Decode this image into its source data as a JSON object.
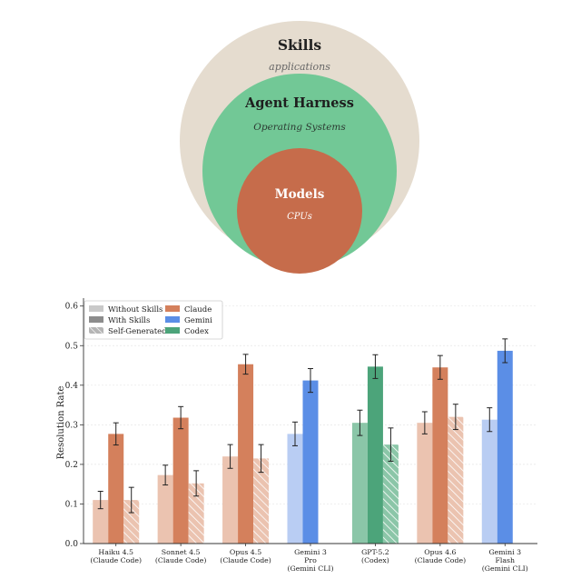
{
  "nested_diagram": {
    "outer": {
      "title": "Skills",
      "subtitle": "applications",
      "color": "#e5dccf"
    },
    "middle": {
      "title": "Agent Harness",
      "subtitle": "Operating Systems",
      "color": "#72c896"
    },
    "inner": {
      "title": "Models",
      "subtitle": "CPUs",
      "color": "#c66c4b"
    }
  },
  "chart_data": {
    "type": "bar",
    "ylabel": "Resolution Rate",
    "ylim": [
      0,
      0.62
    ],
    "yticks": [
      0.0,
      0.1,
      0.2,
      0.3,
      0.4,
      0.5,
      0.6
    ],
    "ytick_labels": [
      "0.0",
      "0.1",
      "0.2",
      "0.3",
      "0.4",
      "0.5",
      "0.6"
    ],
    "grid": true,
    "legend_position": "top-left",
    "legend": {
      "conditions": [
        {
          "label": "Without Skills",
          "style": "light"
        },
        {
          "label": "With Skills",
          "style": "solid"
        },
        {
          "label": "Self-Generated",
          "style": "hatched"
        }
      ],
      "families": [
        {
          "label": "Claude",
          "color": "#d4805c"
        },
        {
          "label": "Gemini",
          "color": "#5b8ee6"
        },
        {
          "label": "Codex",
          "color": "#4ca47a"
        }
      ]
    },
    "categories": [
      {
        "lines": [
          "Haiku 4.5",
          "(Claude Code)"
        ],
        "family": "Claude",
        "without": 0.11,
        "without_err": 0.022,
        "with": 0.277,
        "with_err": 0.028,
        "self": 0.11,
        "self_err": 0.032
      },
      {
        "lines": [
          "Sonnet 4.5",
          "(Claude Code)"
        ],
        "family": "Claude",
        "without": 0.173,
        "without_err": 0.025,
        "with": 0.318,
        "with_err": 0.028,
        "self": 0.152,
        "self_err": 0.032
      },
      {
        "lines": [
          "Opus 4.5",
          "(Claude Code)"
        ],
        "family": "Claude",
        "without": 0.22,
        "without_err": 0.03,
        "with": 0.453,
        "with_err": 0.025,
        "self": 0.215,
        "self_err": 0.035
      },
      {
        "lines": [
          "Gemini 3",
          "Pro",
          "(Gemini CLI)"
        ],
        "family": "Gemini",
        "without": 0.277,
        "without_err": 0.03,
        "with": 0.412,
        "with_err": 0.03,
        "self": null,
        "self_err": null
      },
      {
        "lines": [
          "GPT-5.2",
          "(Codex)"
        ],
        "family": "Codex",
        "without": 0.305,
        "without_err": 0.032,
        "with": 0.447,
        "with_err": 0.03,
        "self": 0.25,
        "self_err": 0.042
      },
      {
        "lines": [
          "Opus 4.6",
          "(Claude Code)"
        ],
        "family": "Claude",
        "without": 0.305,
        "without_err": 0.028,
        "with": 0.445,
        "with_err": 0.03,
        "self": 0.32,
        "self_err": 0.032
      },
      {
        "lines": [
          "Gemini 3",
          "Flash",
          "(Gemini CLI)"
        ],
        "family": "Gemini",
        "without": 0.313,
        "without_err": 0.03,
        "with": 0.487,
        "with_err": 0.03,
        "self": null,
        "self_err": null
      }
    ]
  }
}
